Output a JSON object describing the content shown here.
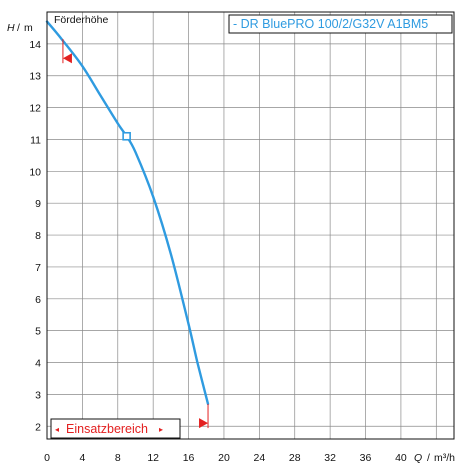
{
  "chart_data": {
    "type": "line",
    "title": "Förderhöhe",
    "ylabel": {
      "symbol": "H",
      "unit": "m"
    },
    "xlabel": {
      "symbol": "Q",
      "unit": "m³/h"
    },
    "xlim": [
      0,
      46
    ],
    "ylim": [
      1.6,
      15.0
    ],
    "xticks": [
      0,
      4,
      8,
      12,
      16,
      20,
      24,
      28,
      32,
      36,
      40
    ],
    "yticks": [
      2,
      3,
      4,
      5,
      6,
      7,
      8,
      9,
      10,
      11,
      12,
      13,
      14
    ],
    "grid": true,
    "legend_position": "top-right",
    "series": [
      {
        "name": "- DR BluePRO 100/2/G32V A1BM5",
        "color": "#2f9be0",
        "x": [
          0,
          1.8,
          4,
          6,
          8,
          9,
          10,
          12,
          14,
          16,
          17,
          18.2
        ],
        "y": [
          14.7,
          14.1,
          13.3,
          12.4,
          11.5,
          11.1,
          10.6,
          9.2,
          7.4,
          5.2,
          4.0,
          2.7
        ]
      }
    ],
    "operating_point": {
      "x": 9,
      "y": 11.1
    },
    "operating_range": {
      "label": "Einsatzbereich",
      "color": "#e32020",
      "start": {
        "x": 1.8,
        "y": 13.55
      },
      "end": {
        "x": 18.2,
        "y": 2.1
      }
    }
  }
}
